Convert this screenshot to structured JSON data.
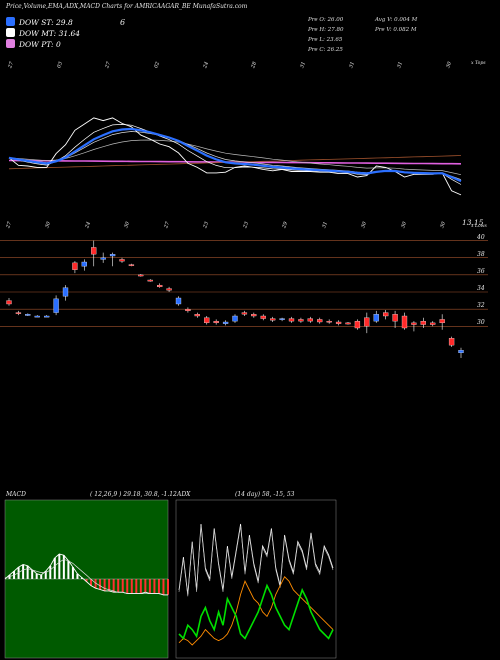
{
  "header": {
    "title": "Price,Volume,EMA,ADX,MACD Charts for AMRICAAGAR_BE MunafaSutra.com",
    "top_number": "6"
  },
  "legend": [
    {
      "label": "DOW ST: 29.8",
      "color": "#2b6fff"
    },
    {
      "label": "DOW MT: 31.64",
      "color": "#ffffff"
    },
    {
      "label": "DOW PT: 0",
      "color": "#e080e0"
    }
  ],
  "stats": {
    "pre_o": "Pre  O: 26.00",
    "pre_h": "Pre  H: 27.80",
    "pre_l": "Pre  L: 23.65",
    "pre_c": "Pre  C: 26.25",
    "avg_v": "Avg V: 0.004  M",
    "pre_v": "Pre  V: 0.082  M"
  },
  "top_chart": {
    "right_label": "x Tops",
    "top_date_labels": [
      "27",
      "03",
      "27",
      "02",
      "24",
      "28",
      "31",
      "31",
      "31",
      "30"
    ],
    "bottom_date_labels": [
      "27",
      "30",
      "24",
      "30",
      "27",
      "23",
      "23",
      "29",
      "31",
      "30",
      "30",
      "30"
    ],
    "last_value_label": "13.15"
  },
  "price_axis": {
    "right_label": "x Lows",
    "ticks": [
      "40",
      "38",
      "36",
      "34",
      "32",
      "30"
    ]
  },
  "macd_panel": {
    "title": "MACD",
    "params": "( 12,26,9 ) 29.18, 30.8, -1.12"
  },
  "adx_panel": {
    "title": "ADX",
    "params": "(14 day) 58, -15, 53"
  },
  "chart_data": {
    "type": "line",
    "price_ticks": [
      40,
      38,
      36,
      34,
      32,
      30
    ],
    "ylim": [
      27,
      41
    ],
    "candles": [
      {
        "o": 33.0,
        "c": 32.6,
        "h": 33.3,
        "l": 32.4
      },
      {
        "o": 31.6,
        "c": 31.5,
        "h": 31.8,
        "l": 31.3
      },
      {
        "o": 31.3,
        "c": 31.4,
        "h": 31.5,
        "l": 31.2
      },
      {
        "o": 31.2,
        "c": 31.2,
        "h": 31.3,
        "l": 31.1
      },
      {
        "o": 31.2,
        "c": 31.2,
        "h": 31.3,
        "l": 31.1
      },
      {
        "o": 31.6,
        "c": 33.2,
        "h": 33.6,
        "l": 31.3
      },
      {
        "o": 33.5,
        "c": 34.5,
        "h": 34.8,
        "l": 33.0
      },
      {
        "o": 37.4,
        "c": 36.6,
        "h": 37.6,
        "l": 36.2
      },
      {
        "o": 37.0,
        "c": 37.5,
        "h": 37.8,
        "l": 36.5
      },
      {
        "o": 39.2,
        "c": 38.4,
        "h": 40.0,
        "l": 37.0
      },
      {
        "o": 37.8,
        "c": 38.0,
        "h": 38.6,
        "l": 37.4
      },
      {
        "o": 38.2,
        "c": 38.4,
        "h": 38.6,
        "l": 37.0
      },
      {
        "o": 37.8,
        "c": 37.6,
        "h": 38.0,
        "l": 37.4
      },
      {
        "o": 37.2,
        "c": 37.1,
        "h": 37.3,
        "l": 37.0
      },
      {
        "o": 36.0,
        "c": 35.9,
        "h": 36.1,
        "l": 35.8
      },
      {
        "o": 35.4,
        "c": 35.3,
        "h": 35.5,
        "l": 35.2
      },
      {
        "o": 34.8,
        "c": 34.6,
        "h": 35.0,
        "l": 34.5
      },
      {
        "o": 34.4,
        "c": 34.2,
        "h": 34.6,
        "l": 34.0
      },
      {
        "o": 32.6,
        "c": 33.3,
        "h": 33.5,
        "l": 32.4
      },
      {
        "o": 32.0,
        "c": 31.8,
        "h": 32.2,
        "l": 31.6
      },
      {
        "o": 31.4,
        "c": 31.2,
        "h": 31.6,
        "l": 31.0
      },
      {
        "o": 31.0,
        "c": 30.4,
        "h": 31.2,
        "l": 30.2
      },
      {
        "o": 30.6,
        "c": 30.4,
        "h": 30.8,
        "l": 30.2
      },
      {
        "o": 30.3,
        "c": 30.5,
        "h": 30.7,
        "l": 30.1
      },
      {
        "o": 30.6,
        "c": 31.2,
        "h": 31.4,
        "l": 30.4
      },
      {
        "o": 31.6,
        "c": 31.4,
        "h": 31.8,
        "l": 31.2
      },
      {
        "o": 31.4,
        "c": 31.2,
        "h": 31.6,
        "l": 31.0
      },
      {
        "o": 31.2,
        "c": 30.9,
        "h": 31.4,
        "l": 30.7
      },
      {
        "o": 30.9,
        "c": 30.7,
        "h": 31.1,
        "l": 30.5
      },
      {
        "o": 30.8,
        "c": 30.9,
        "h": 31.0,
        "l": 30.6
      },
      {
        "o": 30.9,
        "c": 30.6,
        "h": 31.1,
        "l": 30.4
      },
      {
        "o": 30.8,
        "c": 30.6,
        "h": 31.0,
        "l": 30.4
      },
      {
        "o": 30.9,
        "c": 30.6,
        "h": 31.1,
        "l": 30.4
      },
      {
        "o": 30.8,
        "c": 30.5,
        "h": 31.0,
        "l": 30.3
      },
      {
        "o": 30.6,
        "c": 30.5,
        "h": 30.8,
        "l": 30.3
      },
      {
        "o": 30.5,
        "c": 30.3,
        "h": 30.7,
        "l": 30.1
      },
      {
        "o": 30.4,
        "c": 30.3,
        "h": 30.5,
        "l": 30.2
      },
      {
        "o": 30.6,
        "c": 29.8,
        "h": 30.8,
        "l": 29.6
      },
      {
        "o": 31.0,
        "c": 30.0,
        "h": 31.6,
        "l": 29.2
      },
      {
        "o": 30.6,
        "c": 31.4,
        "h": 31.8,
        "l": 30.4
      },
      {
        "o": 31.6,
        "c": 31.2,
        "h": 31.9,
        "l": 30.8
      },
      {
        "o": 31.4,
        "c": 30.6,
        "h": 31.8,
        "l": 29.8
      },
      {
        "o": 31.2,
        "c": 29.8,
        "h": 31.6,
        "l": 29.6
      },
      {
        "o": 30.4,
        "c": 30.2,
        "h": 30.6,
        "l": 29.4
      },
      {
        "o": 30.6,
        "c": 30.2,
        "h": 31.0,
        "l": 29.8
      },
      {
        "o": 30.4,
        "c": 30.2,
        "h": 30.6,
        "l": 30.0
      },
      {
        "o": 30.8,
        "c": 30.4,
        "h": 31.4,
        "l": 29.6
      },
      {
        "o": 28.6,
        "c": 27.8,
        "h": 28.8,
        "l": 27.6
      },
      {
        "o": 26.9,
        "c": 27.2,
        "h": 27.5,
        "l": 26.3
      }
    ],
    "macd": {
      "macd": [
        0.0,
        0.3,
        0.6,
        0.9,
        1.1,
        1.0,
        0.7,
        0.4,
        0.3,
        0.6,
        1.0,
        1.6,
        1.9,
        1.8,
        1.4,
        0.9,
        0.4,
        0.1,
        -0.2,
        -0.5,
        -0.7,
        -0.8,
        -0.9,
        -0.9,
        -1.0,
        -1.0,
        -1.0,
        -1.1,
        -1.1,
        -1.1,
        -1.1,
        -1.0,
        -1.1,
        -1.1,
        -1.1,
        -1.2,
        -1.2
      ],
      "signal": [
        0.2,
        0.3,
        0.4,
        0.6,
        0.8,
        0.9,
        0.8,
        0.7,
        0.6,
        0.6,
        0.8,
        1.1,
        1.4,
        1.6,
        1.5,
        1.3,
        1.0,
        0.7,
        0.4,
        0.1,
        -0.2,
        -0.4,
        -0.6,
        -0.7,
        -0.8,
        -0.9,
        -0.9,
        -1.0,
        -1.0,
        -1.0,
        -1.0,
        -1.0,
        -1.0,
        -1.0,
        -1.0,
        -1.1,
        -1.1
      ],
      "ylim": [
        -3,
        3
      ]
    },
    "adx": {
      "plus_di": [
        30,
        45,
        28,
        52,
        30,
        60,
        40,
        35,
        58,
        42,
        30,
        50,
        36,
        48,
        60,
        38,
        55,
        42,
        34,
        50,
        46,
        58,
        40,
        32,
        55,
        44,
        38,
        52,
        48,
        40,
        56,
        42,
        38,
        50,
        46,
        40
      ],
      "minus_di": [
        10,
        8,
        14,
        12,
        9,
        18,
        22,
        16,
        12,
        20,
        14,
        26,
        22,
        18,
        10,
        8,
        12,
        16,
        20,
        26,
        32,
        28,
        22,
        18,
        14,
        12,
        18,
        24,
        30,
        26,
        20,
        16,
        12,
        10,
        8,
        12
      ],
      "adx": [
        6,
        8,
        7,
        5,
        7,
        9,
        12,
        10,
        8,
        7,
        8,
        10,
        14,
        20,
        28,
        34,
        30,
        26,
        24,
        20,
        18,
        22,
        28,
        32,
        36,
        34,
        30,
        28,
        26,
        24,
        22,
        20,
        18,
        16,
        14,
        12
      ],
      "ylim": [
        0,
        70
      ]
    }
  }
}
